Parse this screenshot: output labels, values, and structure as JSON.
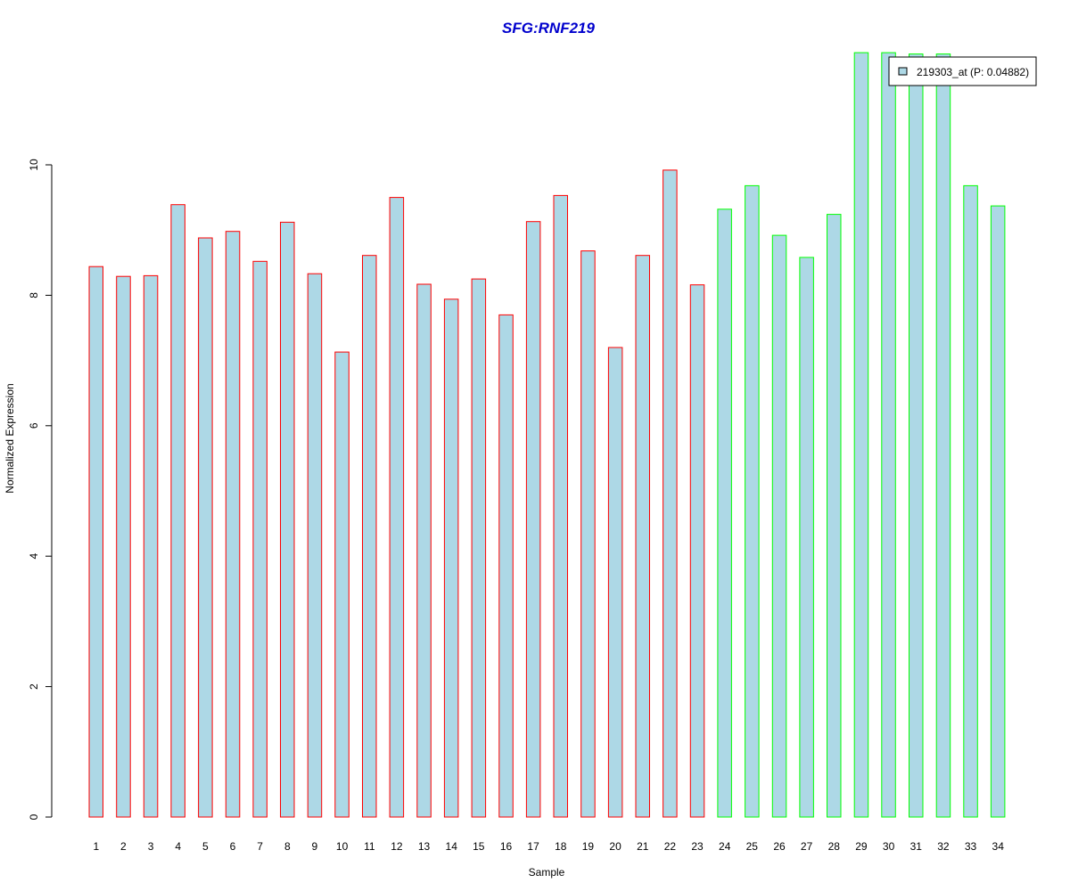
{
  "chart_data": {
    "type": "bar",
    "title": "SFG:RNF219",
    "xlabel": "Sample",
    "ylabel": "Normalized Expression",
    "ylim": [
      0,
      11.7
    ],
    "yticks": [
      0,
      2,
      4,
      6,
      8,
      10
    ],
    "grid": false,
    "legend_position": "top-right",
    "categories": [
      "1",
      "2",
      "3",
      "4",
      "5",
      "6",
      "7",
      "8",
      "9",
      "10",
      "11",
      "12",
      "13",
      "14",
      "15",
      "16",
      "17",
      "18",
      "19",
      "20",
      "21",
      "22",
      "23",
      "24",
      "25",
      "26",
      "27",
      "28",
      "29",
      "30",
      "31",
      "32",
      "33",
      "34"
    ],
    "series": [
      {
        "name": "219303_at (P: 0.04882)",
        "values": [
          8.44,
          8.29,
          8.3,
          9.39,
          8.88,
          8.98,
          8.52,
          9.12,
          8.33,
          7.13,
          8.61,
          9.5,
          8.17,
          7.94,
          8.25,
          7.7,
          9.13,
          9.53,
          8.68,
          7.2,
          8.61,
          9.92,
          8.16,
          9.32,
          9.68,
          8.92,
          8.58,
          9.24,
          11.72,
          11.72,
          11.7,
          11.7,
          9.68,
          9.37
        ]
      }
    ],
    "group_sizes": [
      23,
      11
    ],
    "colors": {
      "bar_fill": "#add8e6",
      "group1_border": "#ff0000",
      "group2_border": "#00ff00",
      "title": "#0000cd",
      "axis": "#000000"
    }
  }
}
